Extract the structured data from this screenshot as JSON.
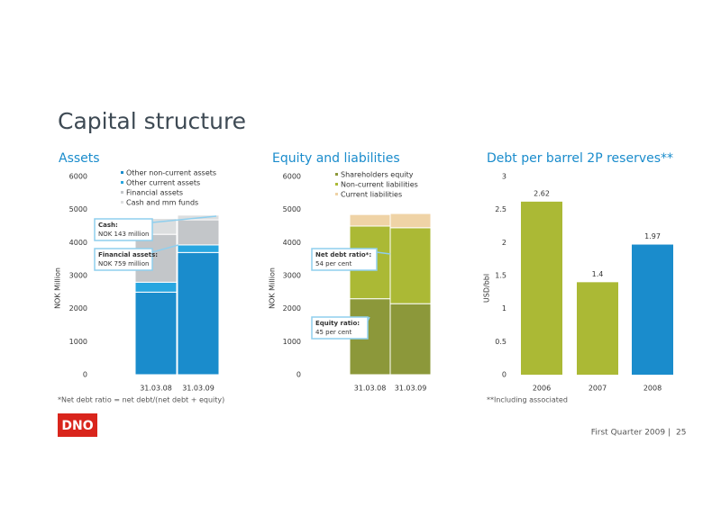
{
  "title": "Capital structure",
  "chart_data": [
    {
      "type": "stacked_bar",
      "title": "Assets",
      "ylabel": "NOK Million",
      "categories": [
        "31.03.08",
        "31.03.09"
      ],
      "series": [
        {
          "name": "Other non-current assets",
          "color": "#1a8ccc",
          "values": [
            2500,
            3700
          ]
        },
        {
          "name": "Other current assets",
          "color": "#27a6e0",
          "values": [
            300,
            230
          ]
        },
        {
          "name": "Financial assets",
          "color": "#c3c6c9",
          "values": [
            1450,
            759
          ]
        },
        {
          "name": "Cash and mm funds",
          "color": "#dcdedf",
          "values": [
            480,
            143
          ]
        }
      ],
      "ylim": [
        0,
        6000
      ],
      "yticks": [
        0,
        1000,
        2000,
        3000,
        4000,
        5000,
        6000
      ],
      "annotations": [
        {
          "title": "Cash:",
          "text": "NOK 143 million"
        },
        {
          "title": "Financial assets:",
          "text": "NOK 759 million"
        }
      ]
    },
    {
      "type": "stacked_bar",
      "title": "Equity and liabilities",
      "ylabel": "NOK Million",
      "categories": [
        "31.03.08",
        "31.03.09"
      ],
      "series": [
        {
          "name": "Shareholders equity",
          "color": "#8c983a",
          "values": [
            2300,
            2150
          ]
        },
        {
          "name": "Non-current liabilities",
          "color": "#abb935",
          "values": [
            2200,
            2300
          ]
        },
        {
          "name": "Current liabilities",
          "color": "#efd3a6",
          "values": [
            350,
            430
          ]
        }
      ],
      "ylim": [
        0,
        6000
      ],
      "yticks": [
        0,
        1000,
        2000,
        3000,
        4000,
        5000,
        6000
      ],
      "annotations": [
        {
          "title": "Net debt ratio*:",
          "text": "54 per cent"
        },
        {
          "title": "Equity ratio:",
          "text": "45 per cent"
        }
      ]
    },
    {
      "type": "bar",
      "title": "Debt per barrel 2P reserves**",
      "ylabel": "USD/bbl",
      "categories": [
        "2006",
        "2007",
        "2008"
      ],
      "values": [
        2.62,
        1.4,
        1.97
      ],
      "colors": [
        "#abb935",
        "#abb935",
        "#1a8ccc"
      ],
      "ylim": [
        0,
        3
      ],
      "yticks": [
        0,
        0.5,
        1,
        1.5,
        2,
        2.5,
        3
      ]
    }
  ],
  "footnotes": [
    "*Net debt ratio = net debt/(net debt + equity)",
    "**Including associated"
  ],
  "footer": {
    "text": "First Quarter 2009 |",
    "page": "25"
  },
  "logo": "DNO"
}
